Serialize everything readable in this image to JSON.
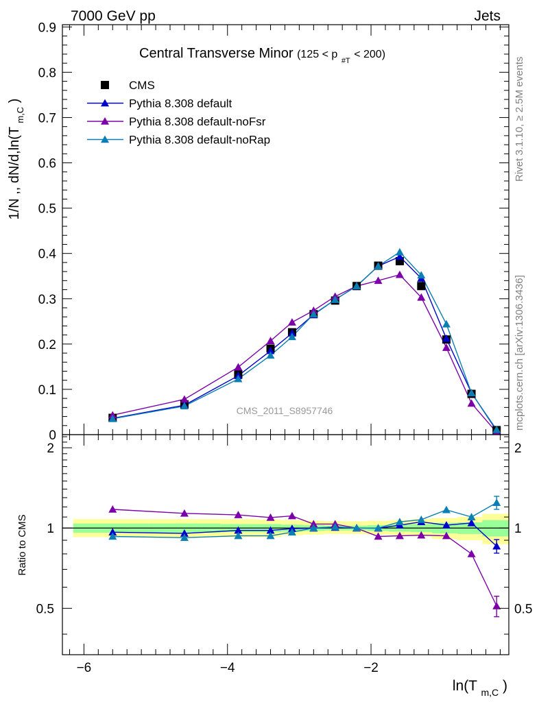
{
  "header": {
    "energy_label": "7000 GeV pp",
    "process_label": "Jets"
  },
  "side_labels": {
    "rivet": "Rivet 3.1.10, ≥ 2.5M events",
    "mcplots": "mcplots.cern.ch [arXiv:1306.3436]"
  },
  "chart_data": [
    {
      "type": "line",
      "title": "Central Transverse Minor",
      "title_cut": "(125 < p",
      "title_cut_sub": "#T",
      "title_cut_end": " < 200)",
      "ylabel_main": "1/N ,, dN/d,ln(T",
      "ylabel_sub": "m,C",
      "ylabel_end": ")",
      "xlim": [
        -6.3,
        -0.08
      ],
      "ylim": [
        0,
        0.905
      ],
      "yticks": [
        0,
        0.1,
        0.2,
        0.3,
        0.4,
        0.5,
        0.6,
        0.7,
        0.8,
        0.9
      ],
      "ytick_labels": [
        "0",
        "0.1",
        "0.2",
        "0.3",
        "0.4",
        "0.5",
        "0.6",
        "0.7",
        "0.8",
        "0.9"
      ],
      "watermark": "CMS_2011_S8957746",
      "legend_position": "top-left",
      "x": [
        -5.6,
        -4.6,
        -3.85,
        -3.4,
        -3.1,
        -2.8,
        -2.5,
        -2.2,
        -1.9,
        -1.6,
        -1.3,
        -0.95,
        -0.6,
        -0.25
      ],
      "series": [
        {
          "name": "CMS",
          "color": "#000000",
          "marker": "square",
          "line": false,
          "values": [
            0.037,
            0.067,
            0.133,
            0.19,
            0.226,
            0.266,
            0.296,
            0.328,
            0.373,
            0.383,
            0.328,
            0.21,
            0.09,
            0.01
          ]
        },
        {
          "name": "Pythia 8.308 default",
          "color": "#0000cc",
          "marker": "triangle",
          "line": true,
          "values": [
            0.036,
            0.065,
            0.13,
            0.185,
            0.224,
            0.265,
            0.298,
            0.328,
            0.372,
            0.393,
            0.345,
            0.212,
            0.092,
            0.009
          ]
        },
        {
          "name": "Pythia 8.308 default-noFsr",
          "color": "#7b00a8",
          "marker": "triangle",
          "line": true,
          "values": [
            0.043,
            0.078,
            0.149,
            0.207,
            0.248,
            0.274,
            0.305,
            0.328,
            0.34,
            0.353,
            0.303,
            0.192,
            0.069,
            0.005
          ]
        },
        {
          "name": "Pythia 8.308 default-noRap",
          "color": "#0b7fb3",
          "marker": "triangle",
          "line": true,
          "values": [
            0.035,
            0.063,
            0.123,
            0.175,
            0.216,
            0.266,
            0.298,
            0.328,
            0.372,
            0.403,
            0.352,
            0.244,
            0.092,
            0.011
          ]
        }
      ]
    },
    {
      "type": "line",
      "ylabel": "Ratio to CMS",
      "xlabel_main": "ln(T",
      "xlabel_sub": "m,C",
      "xlabel_end": ")",
      "xlim": [
        -6.3,
        -0.08
      ],
      "ylim": [
        0.335,
        2.24
      ],
      "xticks": [
        -6,
        -4,
        -2
      ],
      "xtick_labels": [
        "−6",
        "−4",
        "−2"
      ],
      "yticks": [
        0.5,
        1,
        2
      ],
      "ytick_labels": [
        "0.5",
        "1",
        "2"
      ],
      "bands": {
        "edges": [
          -6.15,
          -5.1,
          -4.1,
          -3.6,
          -3.25,
          -2.95,
          -2.65,
          -2.35,
          -2.05,
          -1.75,
          -1.45,
          -1.15,
          -0.8,
          -0.45,
          -0.08
        ],
        "yellow_lo": [
          0.925,
          0.925,
          0.925,
          0.925,
          0.94,
          0.945,
          0.95,
          0.95,
          0.945,
          0.94,
          0.93,
          0.91,
          0.9,
          0.87
        ],
        "yellow_hi": [
          1.08,
          1.08,
          1.08,
          1.075,
          1.07,
          1.065,
          1.06,
          1.06,
          1.065,
          1.07,
          1.08,
          1.09,
          1.1,
          1.13
        ],
        "green_lo": [
          0.96,
          0.96,
          0.965,
          0.965,
          0.97,
          0.975,
          0.98,
          0.98,
          0.975,
          0.97,
          0.965,
          0.955,
          0.95,
          0.93
        ],
        "green_hi": [
          1.04,
          1.04,
          1.035,
          1.035,
          1.03,
          1.025,
          1.02,
          1.02,
          1.025,
          1.03,
          1.035,
          1.045,
          1.05,
          1.07
        ],
        "yellow_color": "#ffff99",
        "green_color": "#99ff99"
      },
      "series": [
        {
          "name": "Pythia 8.308 default",
          "color": "#0000cc",
          "values": [
            0.965,
            0.955,
            0.98,
            0.98,
            0.995,
            0.998,
            1.005,
            1.0,
            0.998,
            1.025,
            1.055,
            1.025,
            1.045,
            0.855
          ],
          "errors": [
            0,
            0,
            0,
            0,
            0,
            0,
            0,
            0,
            0,
            0,
            0,
            0,
            0,
            0.05
          ]
        },
        {
          "name": "Pythia 8.308 default-noFsr",
          "color": "#7b00a8",
          "values": [
            1.175,
            1.135,
            1.12,
            1.095,
            1.11,
            1.035,
            1.035,
            0.998,
            0.93,
            0.935,
            0.94,
            0.935,
            0.8,
            0.51
          ],
          "errors": [
            0,
            0,
            0,
            0,
            0,
            0,
            0,
            0,
            0,
            0,
            0,
            0,
            0,
            0.045
          ]
        },
        {
          "name": "Pythia 8.308 default-noRap",
          "color": "#0b7fb3",
          "values": [
            0.93,
            0.92,
            0.935,
            0.935,
            0.965,
            1.0,
            1.01,
            1.0,
            1.0,
            1.055,
            1.075,
            1.17,
            1.1,
            1.245
          ],
          "errors": [
            0,
            0,
            0,
            0,
            0,
            0,
            0,
            0,
            0,
            0,
            0,
            0,
            0,
            0.07
          ]
        }
      ]
    }
  ]
}
